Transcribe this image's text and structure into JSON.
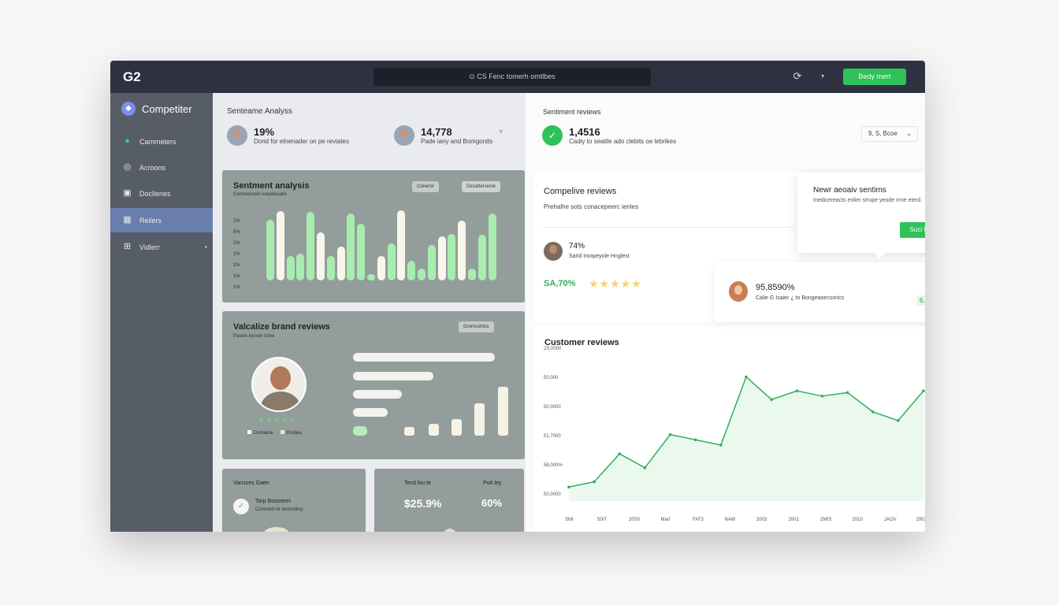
{
  "topbar": {
    "logo": "G2",
    "search_text": "⊙ CS Fenc tomerh omtlbes",
    "icons": [
      "refresh-icon",
      "clock-icon"
    ],
    "button_label": "Bedy mert"
  },
  "sidebar": {
    "brand": "Competiter",
    "items": [
      {
        "label": "Cammeters",
        "icon": "chat-icon"
      },
      {
        "label": "Acroons",
        "icon": "circle-icon"
      },
      {
        "label": "Docllenes",
        "icon": "document-icon"
      },
      {
        "label": "Reilers",
        "icon": "calendar-icon",
        "active": true
      },
      {
        "label": "Vidlerr",
        "icon": "grid-icon",
        "suffix": "•"
      }
    ]
  },
  "left_header": {
    "title": "Senteame Analyss",
    "stat1": {
      "value": "19%",
      "label": "Dorid for elnenader on pe reviates"
    },
    "stat2": {
      "value": "14,778",
      "label": "Pade iany and Bomgonits"
    },
    "stat2_chevron": "˅"
  },
  "sentiment_card": {
    "title": "Sentment analysis",
    "subtitle": "Commenced ruepelasatis",
    "pill1": "Coneror",
    "pill2": "Decattersione",
    "y_labels": [
      "2%",
      "5%",
      "2%",
      "2%",
      "2%",
      "1%",
      "1%"
    ]
  },
  "brand_card": {
    "title": "Valcalize brand reviews",
    "subtitle": "Paseis locoon tome",
    "pill": "Gromsstrtos",
    "stars": "★★★★★",
    "legend1": "Domaina",
    "legend2": "Enidea"
  },
  "bottom_left_card": {
    "title": "Varcioes Gaen",
    "person_name": "Tarp Bosmeon",
    "person_detail": "Coninted vir besroolisy"
  },
  "bottom_mid_card": {
    "label1": "Tecd lou te",
    "label2": "Putt ley",
    "value1": "$25.9%",
    "value2": "60%"
  },
  "right_header": {
    "title": "Sentiment reviews",
    "value": "1,4516",
    "label": "Cadiy to seatile ado clebits oe lebrikes",
    "dropdown": "9, S, Bcoe"
  },
  "competitive": {
    "title": "Compelive reviews",
    "subtitle": "Prehalhe sots conacepeerc ienles",
    "pct": "74%",
    "pct_label": "Sarid Iroopeyole Hnglest",
    "score": "SA,70%",
    "stars": "★★★★★"
  },
  "popup": {
    "title": "Newr aeoaiv sentims",
    "subtitle": "Inedicereacts enlier strupe yeode irme elerd.",
    "button": "Suci fwer"
  },
  "float_card": {
    "value": "95,8590%",
    "label": "Calie G Isaier ¿ to Bongeaoecsorics",
    "badge": "6.6%"
  },
  "customer_reviews": {
    "title": "Customer reviews",
    "y_labels": [
      "2S,0000",
      "50,000",
      "50,0000",
      "51,7000",
      "58,000%",
      "50,0000"
    ],
    "x_labels": [
      "SMI",
      "S0IT",
      "20S0",
      "Marl",
      "FAT3",
      "NAW",
      "2003",
      "2001",
      "ZMIS",
      "2010",
      "JAOV",
      "2003"
    ]
  },
  "chart_data": [
    {
      "type": "bar",
      "title": "Sentment analysis",
      "series": [
        {
          "values": [
            0.86,
            0.98,
            0.35,
            0.38,
            0.97,
            0.68,
            0.35,
            0.48,
            0.95,
            0.8,
            0.05,
            0.34,
            0.52,
            0.99,
            0.28,
            0.17,
            0.5,
            0.62,
            0.66,
            0.84,
            0.17,
            0.64,
            0.95
          ]
        }
      ],
      "colors": [
        "#a8ecb0",
        "#f7f6e8"
      ]
    },
    {
      "type": "line",
      "title": "Customer reviews",
      "x": [
        0,
        1,
        2,
        3,
        4,
        5,
        6,
        7,
        8,
        9,
        10,
        11,
        12,
        13,
        14
      ],
      "values": [
        0.08,
        0.11,
        0.27,
        0.19,
        0.38,
        0.35,
        0.32,
        0.71,
        0.58,
        0.63,
        0.6,
        0.62,
        0.51,
        0.46,
        0.63
      ]
    }
  ]
}
